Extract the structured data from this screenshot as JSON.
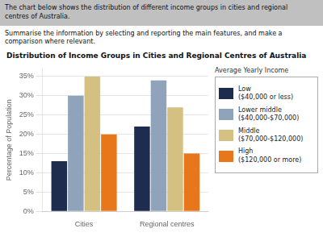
{
  "chart_data": {
    "type": "bar",
    "title": "Distribution of Income Groups in Cities and Regional Centres of Australia",
    "annotations": [
      "The chart below shows the distribution of different income groups in cities and regional\ncentres of Australia.",
      "Summarise the information by selecting and reporting the main features, and make a\ncomparison where relevant."
    ],
    "categories": [
      "Cities",
      "Regional centres"
    ],
    "series": [
      {
        "name": "Low\n($40,000 or less)",
        "color": "#1e2d4e",
        "values": [
          13,
          22
        ]
      },
      {
        "name": "Lower middle\n($40,000-$70,000)",
        "color": "#8fa3ba",
        "values": [
          30,
          34
        ]
      },
      {
        "name": "Middle\n($70,000-$120,000)",
        "color": "#d4c080",
        "values": [
          35,
          27
        ]
      },
      {
        "name": "High\n($120,000 or more)",
        "color": "#e8761a",
        "values": [
          20,
          15
        ]
      }
    ],
    "legend": "right",
    "legend_title": "Average Yearly Income",
    "ylabel": "Percentage of Population",
    "ylim": [
      0,
      37
    ],
    "yticks": [
      {
        "value": 0,
        "label": "0%"
      },
      {
        "value": 5,
        "label": "5%"
      },
      {
        "value": 10,
        "label": "10%"
      },
      {
        "value": 15,
        "label": "15%"
      },
      {
        "value": 20,
        "label": "20%"
      },
      {
        "value": 25,
        "label": "25%"
      },
      {
        "value": 30,
        "label": "30%"
      },
      {
        "value": 35,
        "label": "35%"
      }
    ],
    "grid": true
  }
}
